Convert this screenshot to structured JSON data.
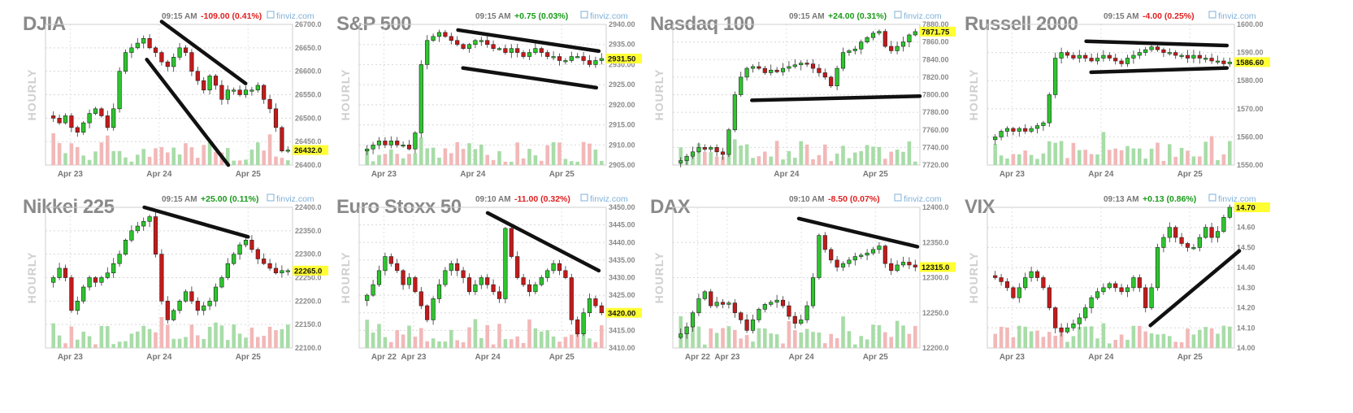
{
  "chart_data": [
    {
      "type": "candlestick",
      "title": "DJIA",
      "time": "09:15 AM",
      "change": "-109.00 (0.41%)",
      "change_dir": "down",
      "brand": "finviz.com",
      "ylabel": "HOURLY",
      "y_ticks": [
        "26700.0",
        "26650.0",
        "26600.0",
        "26550.0",
        "26500.0",
        "26450.0",
        "26400.0"
      ],
      "ylim": [
        26400,
        26700
      ],
      "last": 26432,
      "last_label": "26432.0",
      "x_ticks": [
        "Apr 23",
        "Apr 24",
        "Apr 25"
      ],
      "closes": [
        26500,
        26490,
        26505,
        26480,
        26470,
        26490,
        26510,
        26520,
        26505,
        26480,
        26520,
        26600,
        26640,
        26650,
        26660,
        26670,
        26650,
        26640,
        26620,
        26610,
        26630,
        26650,
        26640,
        26600,
        26580,
        26560,
        26590,
        26570,
        26540,
        26560,
        26560,
        26550,
        26560,
        26560,
        26570,
        26540,
        26520,
        26480,
        26430,
        26432
      ],
      "trendlines": [
        [
          0.47,
          1.02,
          0.81,
          0.58
        ],
        [
          0.41,
          0.75,
          0.74,
          0.0
        ]
      ]
    },
    {
      "type": "candlestick",
      "title": "S&P 500",
      "time": "09:15 AM",
      "change": "+0.75 (0.03%)",
      "change_dir": "up",
      "brand": "finviz.com",
      "ylabel": "HOURLY",
      "y_ticks": [
        "2940.00",
        "2935.00",
        "2930.00",
        "2925.00",
        "2920.00",
        "2915.00",
        "2910.00",
        "2905.00"
      ],
      "ylim": [
        2905,
        2940
      ],
      "last": 2931.5,
      "last_label": "2931.50",
      "x_ticks": [
        "Apr 23",
        "Apr 24",
        "Apr 25"
      ],
      "closes": [
        2909,
        2910,
        2911,
        2910,
        2911,
        2910,
        2910,
        2909,
        2913,
        2930,
        2936,
        2937,
        2938,
        2937,
        2936,
        2935,
        2934,
        2935,
        2936,
        2936,
        2935,
        2934,
        2934,
        2933,
        2934,
        2933,
        2932,
        2933,
        2934,
        2933,
        2932,
        2932,
        2931,
        2931,
        2932,
        2932,
        2931,
        2930,
        2931,
        2931.5
      ],
      "trendlines": [
        [
          0.4,
          0.96,
          0.97,
          0.81
        ],
        [
          0.42,
          0.69,
          0.96,
          0.55
        ]
      ]
    },
    {
      "type": "candlestick",
      "title": "Nasdaq 100",
      "time": "09:15 AM",
      "change": "+24.00 (0.31%)",
      "change_dir": "up",
      "brand": "finviz.com",
      "ylabel": "HOURLY",
      "y_ticks": [
        "7880.00",
        "7860.00",
        "7840.00",
        "7820.00",
        "7800.00",
        "7780.00",
        "7760.00",
        "7740.00",
        "7720.00"
      ],
      "ylim": [
        7720,
        7880
      ],
      "last": 7871.75,
      "last_label": "7871.75",
      "x_ticks": [
        "Apr 24",
        "Apr 25"
      ],
      "closes": [
        7725,
        7730,
        7735,
        7740,
        7738,
        7740,
        7735,
        7732,
        7760,
        7800,
        7820,
        7830,
        7832,
        7830,
        7825,
        7828,
        7826,
        7830,
        7832,
        7834,
        7836,
        7835,
        7830,
        7825,
        7820,
        7810,
        7830,
        7848,
        7850,
        7852,
        7860,
        7865,
        7870,
        7872,
        7855,
        7850,
        7855,
        7860,
        7868,
        7871.75
      ],
      "trendlines": [
        [
          0.32,
          0.46,
          1.0,
          0.49
        ]
      ]
    },
    {
      "type": "candlestick",
      "title": "Russell 2000",
      "time": "09:15 AM",
      "change": "-4.00 (0.25%)",
      "change_dir": "down",
      "brand": "finviz.com",
      "ylabel": "HOURLY",
      "y_ticks": [
        "1600.00",
        "1590.00",
        "1580.00",
        "1570.00",
        "1560.00",
        "1550.00"
      ],
      "ylim": [
        1550,
        1600
      ],
      "last": 1586.6,
      "last_label": "1586.60",
      "x_ticks": [
        "Apr 23",
        "Apr 24",
        "Apr 25"
      ],
      "closes": [
        1560,
        1562,
        1563,
        1562,
        1563,
        1562,
        1563,
        1564,
        1565,
        1575,
        1588,
        1590,
        1589,
        1588,
        1589,
        1588,
        1587,
        1588,
        1589,
        1588,
        1587,
        1586,
        1588,
        1589,
        1590,
        1591,
        1592,
        1591,
        1590,
        1590,
        1589,
        1589,
        1588,
        1589,
        1588,
        1588,
        1587,
        1587,
        1586,
        1586.6
      ],
      "trendlines": [
        [
          0.4,
          0.88,
          0.97,
          0.85
        ],
        [
          0.42,
          0.66,
          0.97,
          0.69
        ]
      ]
    },
    {
      "type": "candlestick",
      "title": "Nikkei 225",
      "time": "09:15 AM",
      "change": "+25.00 (0.11%)",
      "change_dir": "up",
      "brand": "finviz.com",
      "ylabel": "HOURLY",
      "y_ticks": [
        "22400.0",
        "22350.0",
        "22300.0",
        "22250.0",
        "22200.0",
        "22150.0",
        "22100.0"
      ],
      "ylim": [
        22100,
        22400
      ],
      "last": 22265,
      "last_label": "22265.0",
      "x_ticks": [
        "Apr 23",
        "Apr 24",
        "Apr 25"
      ],
      "closes": [
        22250,
        22270,
        22250,
        22180,
        22200,
        22230,
        22250,
        22240,
        22250,
        22260,
        22280,
        22300,
        22330,
        22350,
        22360,
        22370,
        22380,
        22300,
        22200,
        22160,
        22180,
        22200,
        22220,
        22200,
        22180,
        22190,
        22200,
        22230,
        22250,
        22280,
        22300,
        22320,
        22330,
        22310,
        22290,
        22280,
        22270,
        22260,
        22265,
        22265
      ],
      "trendlines": [
        [
          0.4,
          1.0,
          0.82,
          0.79
        ]
      ]
    },
    {
      "type": "candlestick",
      "title": "Euro Stoxx 50",
      "time": "09:10 AM",
      "change": "-11.00 (0.32%)",
      "change_dir": "down",
      "brand": "finviz.com",
      "ylabel": "HOURLY",
      "y_ticks": [
        "3450.00",
        "3445.00",
        "3440.00",
        "3435.00",
        "3430.00",
        "3425.00",
        "3420.00",
        "3415.00",
        "3410.00"
      ],
      "ylim": [
        3410,
        3450
      ],
      "last": 3420,
      "last_label": "3420.00",
      "x_ticks": [
        "Apr 22",
        "Apr 23",
        "Apr 24",
        "Apr 25"
      ],
      "closes": [
        3425,
        3428,
        3432,
        3436,
        3434,
        3432,
        3428,
        3430,
        3426,
        3422,
        3418,
        3424,
        3428,
        3432,
        3434,
        3432,
        3430,
        3426,
        3428,
        3430,
        3428,
        3426,
        3424,
        3444,
        3436,
        3430,
        3428,
        3426,
        3428,
        3430,
        3432,
        3434,
        3432,
        3430,
        3418,
        3414,
        3420,
        3424,
        3422,
        3420
      ],
      "trendlines": [
        [
          0.52,
          0.96,
          0.97,
          0.55
        ]
      ]
    },
    {
      "type": "candlestick",
      "title": "DAX",
      "time": "09:10 AM",
      "change": "-8.50 (0.07%)",
      "change_dir": "down",
      "brand": "finviz.com",
      "ylabel": "HOURLY",
      "y_ticks": [
        "12400.0",
        "12350.0",
        "12300.0",
        "12250.0",
        "12200.0"
      ],
      "ylim": [
        12200,
        12400
      ],
      "last": 12315,
      "last_label": "12315.0",
      "x_ticks": [
        "Apr 22",
        "Apr 23",
        "Apr 24",
        "Apr 25"
      ],
      "closes": [
        12220,
        12230,
        12250,
        12270,
        12280,
        12260,
        12265,
        12262,
        12264,
        12250,
        12240,
        12225,
        12240,
        12255,
        12262,
        12265,
        12268,
        12260,
        12245,
        12235,
        12240,
        12260,
        12300,
        12360,
        12340,
        12325,
        12315,
        12320,
        12325,
        12330,
        12332,
        12335,
        12340,
        12345,
        12320,
        12310,
        12318,
        12322,
        12318,
        12315
      ],
      "trendlines": [
        [
          0.51,
          0.92,
          0.99,
          0.72
        ]
      ]
    },
    {
      "type": "candlestick",
      "title": "VIX",
      "time": "09:13 AM",
      "change": "+0.13 (0.86%)",
      "change_dir": "up",
      "brand": "finviz.com",
      "ylabel": "HOURLY",
      "y_ticks": [
        "14.70",
        "14.60",
        "14.50",
        "14.40",
        "14.30",
        "14.20",
        "14.10",
        "14.00"
      ],
      "ylim": [
        14.0,
        14.7
      ],
      "last": 14.7,
      "last_label": "14.70",
      "x_ticks": [
        "Apr 23",
        "Apr 24",
        "Apr 25"
      ],
      "closes": [
        14.35,
        14.33,
        14.3,
        14.25,
        14.3,
        14.35,
        14.38,
        14.35,
        14.3,
        14.2,
        14.1,
        14.08,
        14.1,
        14.12,
        14.15,
        14.2,
        14.25,
        14.28,
        14.3,
        14.32,
        14.3,
        14.28,
        14.3,
        14.35,
        14.3,
        14.2,
        14.3,
        14.5,
        14.55,
        14.6,
        14.55,
        14.52,
        14.5,
        14.5,
        14.55,
        14.6,
        14.55,
        14.58,
        14.65,
        14.7
      ],
      "trendlines": [
        [
          0.66,
          0.16,
          1.02,
          0.69
        ]
      ]
    }
  ]
}
